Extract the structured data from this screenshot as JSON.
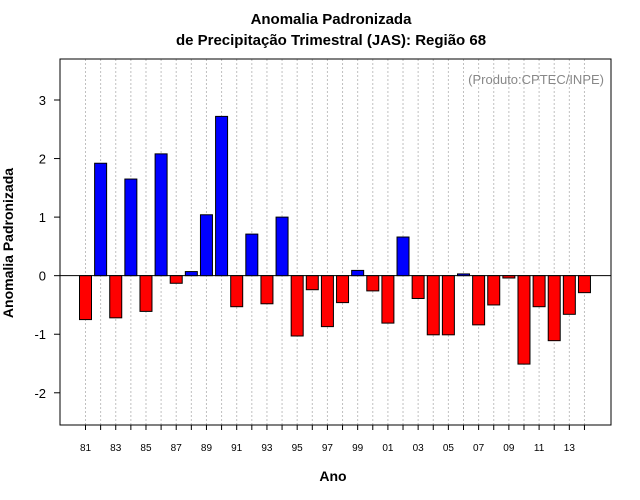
{
  "chart_data": {
    "type": "bar",
    "title_line1": "Anomalia Padronizada",
    "title_line2": "de Precipitação Trimestral (JAS): Região 68",
    "xlabel": "Ano",
    "ylabel": "Anomalia Padronizada",
    "credit": "(Produto:CPTEC/INPE)",
    "ylim": [
      -2.55,
      3.7
    ],
    "yticks": [
      -2,
      -1,
      0,
      1,
      2,
      3
    ],
    "x_tick_labels": [
      "81",
      "83",
      "85",
      "87",
      "89",
      "91",
      "93",
      "95",
      "97",
      "99",
      "01",
      "03",
      "05",
      "07",
      "09",
      "11",
      "13"
    ],
    "categories": [
      "1981",
      "1982",
      "1983",
      "1984",
      "1985",
      "1986",
      "1987",
      "1988",
      "1989",
      "1990",
      "1991",
      "1992",
      "1993",
      "1994",
      "1995",
      "1996",
      "1997",
      "1998",
      "1999",
      "2000",
      "2001",
      "2002",
      "2003",
      "2004",
      "2005",
      "2006",
      "2007",
      "2008",
      "2009",
      "2010",
      "2011",
      "2012",
      "2013",
      "2014"
    ],
    "values": [
      -0.75,
      1.92,
      -0.72,
      1.65,
      -0.61,
      2.08,
      -0.13,
      0.07,
      1.04,
      2.72,
      -0.53,
      0.71,
      -0.48,
      1.0,
      -1.03,
      -0.24,
      -0.87,
      -0.46,
      0.09,
      -0.26,
      -0.81,
      0.66,
      -0.39,
      -1.01,
      -1.01,
      0.03,
      -0.84,
      -0.5,
      -0.04,
      -1.51,
      -0.53,
      -1.11,
      -0.66,
      -0.29
    ],
    "colors": {
      "positive": "#0000ff",
      "negative": "#ff0000",
      "grid": "#c0c0c0"
    }
  }
}
